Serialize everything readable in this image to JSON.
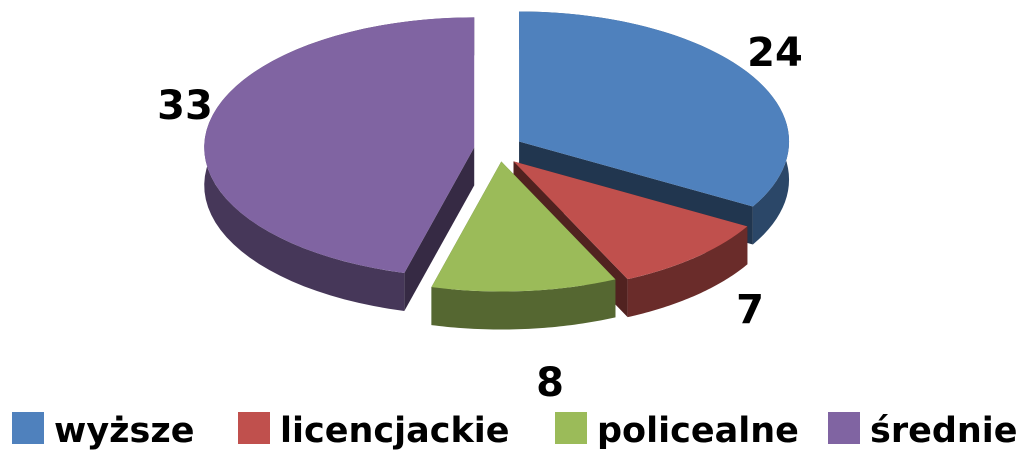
{
  "chart_data": {
    "type": "pie",
    "title": "",
    "categories": [
      "wyższe",
      "licencjackie",
      "policealne",
      "średnie"
    ],
    "values": [
      24,
      7,
      8,
      33
    ],
    "data_labels": [
      "24",
      "7",
      "8",
      "33"
    ],
    "colors": [
      "#4F81BD",
      "#C0504D",
      "#9BBB59",
      "#8064A2"
    ],
    "style": "3d-exploded",
    "legend": {
      "position": "bottom",
      "entries": [
        "wyższe",
        "licencjackie",
        "policealne",
        "średnie"
      ]
    }
  }
}
